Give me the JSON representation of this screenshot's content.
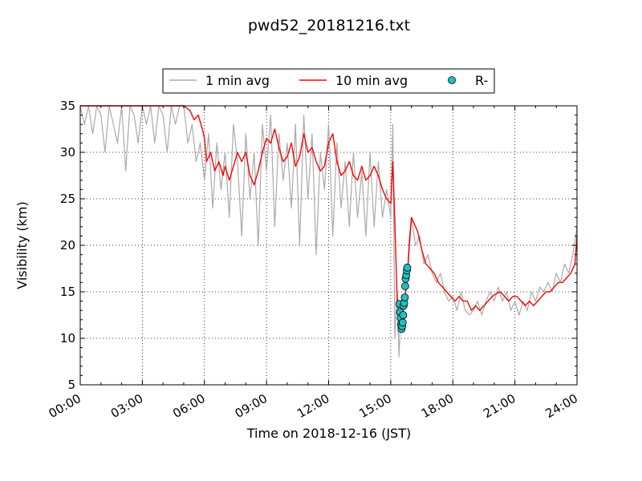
{
  "chart_data": {
    "type": "line",
    "title": "pwd52_20181216.txt",
    "xlabel": "Time on 2018-12-16 (JST)",
    "ylabel": "Visibility (km)",
    "xlim": [
      0,
      24
    ],
    "ylim": [
      5,
      35
    ],
    "x_ticks": [
      "00:00",
      "03:00",
      "06:00",
      "09:00",
      "12:00",
      "15:00",
      "18:00",
      "21:00",
      "24:00"
    ],
    "y_ticks": [
      "5",
      "10",
      "15",
      "20",
      "25",
      "30",
      "35"
    ],
    "grid": true,
    "legend_placement": "top-center",
    "legend": [
      "1 min avg",
      "10 min avg",
      "R-"
    ],
    "colors": {
      "one_min": "#aaaaaa",
      "ten_min": "#ff0000",
      "precip_fill": "#20c0c0",
      "precip_edge": "#000000"
    },
    "series": [
      {
        "name": "10 min avg",
        "x": [
          0.0,
          0.5,
          1.0,
          1.5,
          2.0,
          2.5,
          3.0,
          3.5,
          4.0,
          4.5,
          5.0,
          5.3,
          5.5,
          5.7,
          5.9,
          6.0,
          6.1,
          6.3,
          6.5,
          6.7,
          6.9,
          7.0,
          7.2,
          7.4,
          7.6,
          7.8,
          8.0,
          8.2,
          8.4,
          8.6,
          8.8,
          9.0,
          9.2,
          9.4,
          9.6,
          9.8,
          10.0,
          10.2,
          10.4,
          10.6,
          10.8,
          11.0,
          11.2,
          11.4,
          11.6,
          11.8,
          12.0,
          12.2,
          12.4,
          12.6,
          12.8,
          13.0,
          13.2,
          13.4,
          13.6,
          13.8,
          14.0,
          14.2,
          14.4,
          14.6,
          14.8,
          15.0,
          15.1,
          15.2,
          15.3,
          15.4,
          15.5,
          15.6,
          15.7,
          15.8,
          15.9,
          16.0,
          16.1,
          16.3,
          16.5,
          16.7,
          16.9,
          17.1,
          17.3,
          17.5,
          17.7,
          17.9,
          18.1,
          18.3,
          18.5,
          18.7,
          18.9,
          19.1,
          19.3,
          19.5,
          19.7,
          19.9,
          20.1,
          20.3,
          20.5,
          20.7,
          20.9,
          21.1,
          21.3,
          21.5,
          21.7,
          21.9,
          22.1,
          22.3,
          22.5,
          22.7,
          22.9,
          23.1,
          23.3,
          23.5,
          23.7,
          23.9,
          24.0
        ],
        "y": [
          35,
          35,
          35,
          35,
          35,
          35,
          35,
          35,
          35,
          35,
          35,
          34.5,
          33.5,
          34.0,
          32.5,
          31.5,
          29.0,
          30.0,
          28.0,
          29.0,
          27.5,
          28.5,
          27.0,
          28.5,
          30.0,
          29.0,
          30.0,
          27.5,
          26.5,
          28.0,
          30.0,
          31.5,
          31.0,
          32.5,
          30.5,
          29.0,
          29.5,
          31.0,
          28.5,
          29.5,
          32.0,
          30.0,
          30.5,
          29.0,
          28.0,
          28.5,
          31.0,
          32.0,
          29.0,
          27.5,
          28.0,
          29.0,
          27.5,
          27.0,
          28.5,
          27.0,
          27.5,
          28.5,
          27.5,
          26.0,
          25.0,
          24.5,
          29.0,
          22.5,
          15.0,
          12.0,
          13.5,
          13.5,
          14.5,
          16.5,
          20.0,
          23.0,
          22.5,
          21.5,
          19.5,
          18.0,
          17.5,
          17.0,
          16.0,
          15.5,
          15.0,
          14.5,
          14.0,
          14.5,
          14.0,
          14.0,
          13.0,
          13.5,
          13.0,
          13.5,
          14.0,
          14.5,
          14.8,
          15.0,
          14.5,
          14.0,
          14.5,
          14.5,
          14.0,
          13.5,
          14.0,
          13.5,
          14.0,
          14.5,
          15.0,
          15.0,
          15.5,
          16.0,
          16.0,
          16.5,
          17.0,
          18.0,
          21.0
        ]
      },
      {
        "name": "1 min avg",
        "x": [
          0.0,
          0.2,
          0.4,
          0.6,
          0.8,
          1.0,
          1.2,
          1.4,
          1.6,
          1.8,
          2.0,
          2.2,
          2.4,
          2.6,
          2.8,
          3.0,
          3.2,
          3.4,
          3.6,
          3.8,
          4.0,
          4.2,
          4.4,
          4.6,
          4.8,
          5.0,
          5.2,
          5.4,
          5.6,
          5.8,
          6.0,
          6.2,
          6.4,
          6.6,
          6.8,
          7.0,
          7.2,
          7.4,
          7.6,
          7.8,
          8.0,
          8.2,
          8.4,
          8.6,
          8.8,
          9.0,
          9.2,
          9.4,
          9.6,
          9.8,
          10.0,
          10.2,
          10.4,
          10.6,
          10.8,
          11.0,
          11.2,
          11.4,
          11.6,
          11.8,
          12.0,
          12.2,
          12.4,
          12.6,
          12.8,
          13.0,
          13.2,
          13.4,
          13.6,
          13.8,
          14.0,
          14.2,
          14.4,
          14.6,
          14.8,
          15.0,
          15.1,
          15.2,
          15.3,
          15.4,
          15.5,
          15.6,
          15.7,
          15.8,
          15.9,
          16.0,
          16.2,
          16.4,
          16.6,
          16.8,
          17.0,
          17.2,
          17.4,
          17.6,
          17.8,
          18.0,
          18.2,
          18.4,
          18.6,
          18.8,
          19.0,
          19.2,
          19.4,
          19.6,
          19.8,
          20.0,
          20.2,
          20.4,
          20.6,
          20.8,
          21.0,
          21.2,
          21.4,
          21.6,
          21.8,
          22.0,
          22.2,
          22.4,
          22.6,
          22.8,
          23.0,
          23.2,
          23.4,
          23.6,
          23.8,
          24.0
        ],
        "y": [
          35,
          33,
          35,
          32,
          35,
          34,
          30,
          35,
          33,
          31,
          35,
          28,
          35,
          34,
          31,
          35,
          33,
          35,
          31,
          35,
          34,
          30,
          35,
          33,
          35,
          35,
          31,
          33,
          29,
          31,
          27,
          32,
          24,
          31,
          26,
          30,
          23,
          33,
          29,
          21,
          32,
          25,
          30,
          20,
          33,
          28,
          34,
          22,
          32,
          27,
          31,
          24,
          33,
          20,
          34,
          25,
          32,
          19,
          30,
          26,
          33,
          21,
          31,
          24,
          29,
          22,
          30,
          23,
          28,
          21,
          30,
          22,
          29,
          23,
          26,
          23,
          33,
          10,
          15,
          8,
          14,
          12,
          15,
          17,
          21,
          23,
          20,
          21,
          18,
          19,
          17,
          16,
          17,
          15,
          14,
          14.5,
          13,
          15,
          13,
          12.5,
          13,
          14,
          12.5,
          14,
          15,
          14,
          15.5,
          14,
          15,
          13,
          14,
          12.5,
          14,
          13,
          15,
          14,
          15.5,
          15,
          16,
          15,
          17,
          16,
          18,
          17,
          19,
          22
        ]
      },
      {
        "name": "R-",
        "x": [
          15.42,
          15.45,
          15.48,
          15.5,
          15.52,
          15.55,
          15.58,
          15.6,
          15.62,
          15.65,
          15.68,
          15.7,
          15.72,
          15.75,
          15.78,
          15.8
        ],
        "y": [
          13.7,
          12.8,
          12.2,
          11.5,
          11.0,
          11.3,
          11.7,
          12.5,
          13.5,
          13.8,
          14.4,
          15.6,
          16.4,
          16.8,
          17.3,
          17.6
        ]
      }
    ]
  }
}
